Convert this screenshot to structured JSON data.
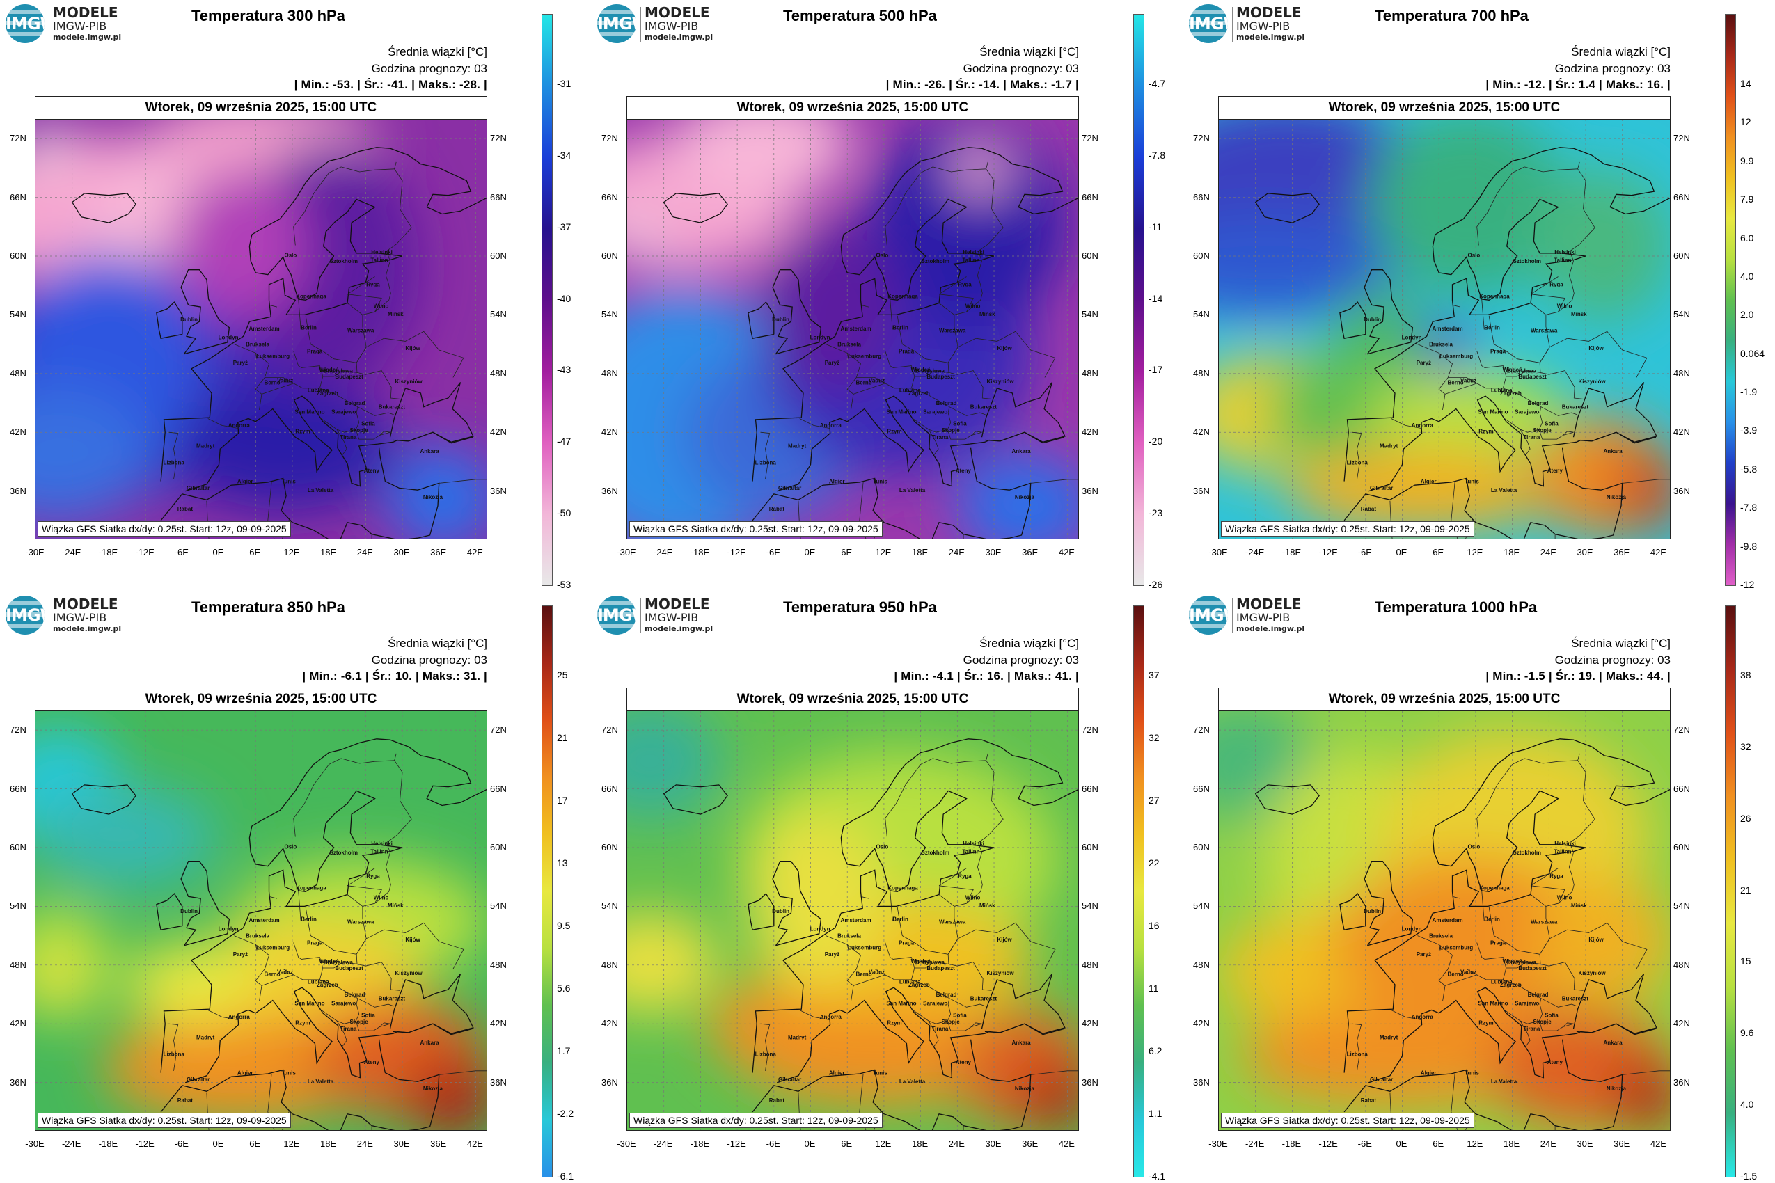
{
  "panels": [
    {
      "title": "Temperatura 300 hPa",
      "avg_label": "Średnia wiązki [°C]",
      "hour_label": "Godzina prognozy: 03",
      "stats_text": "| Min.:     -53. | Śr.:     -41. | Maks.:     -28. |",
      "date_text": "Wtorek, 09 września 2025, 15:00 UTC",
      "footer_text": "Wiązka GFS Siatka dx/dy: 0.25st. Start: 12z, 09-09-2025",
      "colorbar": {
        "ticks": [
          "-31",
          "-34",
          "-37",
          "-40",
          "-43",
          "-47",
          "-50",
          "-53"
        ],
        "colors": [
          "#25e6e6",
          "#1e8ee0",
          "#1a3ed8",
          "#26128f",
          "#5e0f8c",
          "#a21e9f",
          "#e060c0",
          "#f2b6d8",
          "#e8e8e8"
        ]
      },
      "field": {
        "bg": "#8a2fa5",
        "blobs": [
          [
            "#f5a6d0",
            0.15,
            0.22,
            0.32,
            0.18
          ],
          [
            "#f8b7d8",
            0.3,
            0.3,
            0.18,
            0.22
          ],
          [
            "#f3a2cc",
            0.5,
            0.05,
            0.25,
            0.1
          ],
          [
            "#e8e8e8",
            0.02,
            0.06,
            0.04,
            0.05
          ],
          [
            "#3f2ab8",
            0.2,
            0.62,
            0.35,
            0.28
          ],
          [
            "#2f56e0",
            0.15,
            0.6,
            0.22,
            0.28
          ],
          [
            "#3870e0",
            0.05,
            0.8,
            0.2,
            0.16
          ],
          [
            "#5b1aa0",
            0.65,
            0.35,
            0.2,
            0.3
          ],
          [
            "#2a1ea8",
            0.55,
            0.78,
            0.25,
            0.15
          ],
          [
            "#2b6fe8",
            0.9,
            0.9,
            0.12,
            0.12
          ],
          [
            "#b040b8",
            0.45,
            0.3,
            0.15,
            0.18
          ]
        ]
      }
    },
    {
      "title": "Temperatura 500 hPa",
      "avg_label": "Średnia wiązki [°C]",
      "hour_label": "Godzina prognozy: 03",
      "stats_text": "| Min.:     -26. | Śr.:     -14. | Maks.:     -1.7 |",
      "date_text": "Wtorek, 09 września 2025, 15:00 UTC",
      "footer_text": "Wiązka GFS Siatka dx/dy: 0.25st. Start: 12z, 09-09-2025",
      "colorbar": {
        "ticks": [
          "-4.7",
          "-7.8",
          "-11",
          "-14",
          "-17",
          "-20",
          "-23",
          "-26"
        ],
        "colors": [
          "#25e6e6",
          "#1e8ee0",
          "#1a3ed8",
          "#26128f",
          "#5e0f8c",
          "#a21e9f",
          "#e060c0",
          "#f2b6d8",
          "#e8e8e8"
        ]
      },
      "field": {
        "bg": "#9a38ac",
        "blobs": [
          [
            "#f5a6d0",
            0.12,
            0.2,
            0.26,
            0.16
          ],
          [
            "#f8b7d8",
            0.3,
            0.06,
            0.2,
            0.12
          ],
          [
            "#e8c8e0",
            0.02,
            0.28,
            0.05,
            0.05
          ],
          [
            "#2f8ee8",
            0.12,
            0.72,
            0.28,
            0.32
          ],
          [
            "#3a6ad8",
            0.32,
            0.75,
            0.2,
            0.2
          ],
          [
            "#3a2ab8",
            0.6,
            0.55,
            0.3,
            0.3
          ],
          [
            "#2a1ea8",
            0.75,
            0.25,
            0.22,
            0.25
          ],
          [
            "#5b1aa0",
            0.45,
            0.45,
            0.15,
            0.2
          ],
          [
            "#f0a8d4",
            0.78,
            0.12,
            0.06,
            0.06
          ],
          [
            "#2b6fe8",
            0.88,
            0.92,
            0.15,
            0.12
          ]
        ]
      }
    },
    {
      "title": "Temperatura 700 hPa",
      "avg_label": "Średnia wiązki [°C]",
      "hour_label": "Godzina prognozy: 03",
      "stats_text": "| Min.:     -12. | Śr.:     1.4 | Maks.:     16. |",
      "date_text": "Wtorek, 09 września 2025, 15:00 UTC",
      "footer_text": "Wiązka GFS Siatka dx/dy: 0.25st. Start: 12z, 09-09-2025",
      "colorbar": {
        "ticks": [
          "14",
          "12",
          "9.9",
          "7.9",
          "6.0",
          "4.0",
          "2.0",
          "0.064",
          "-1.9",
          "-3.9",
          "-5.8",
          "-7.8",
          "-9.8",
          "-12"
        ],
        "colors": [
          "#5a1010",
          "#a82818",
          "#e05018",
          "#f09020",
          "#f0c020",
          "#e8e840",
          "#b8e040",
          "#60c050",
          "#38b080",
          "#28c8d8",
          "#2890e8",
          "#2040c8",
          "#3a148f",
          "#a22ea8",
          "#e060c8"
        ]
      },
      "field": {
        "bg": "#2fc3d8",
        "blobs": [
          [
            "#3a40c0",
            0.15,
            0.15,
            0.32,
            0.2
          ],
          [
            "#2e58d0",
            0.1,
            0.35,
            0.3,
            0.12
          ],
          [
            "#4060c8",
            0.45,
            0.55,
            0.12,
            0.08
          ],
          [
            "#38b080",
            0.55,
            0.2,
            0.22,
            0.22
          ],
          [
            "#48b868",
            0.35,
            0.55,
            0.1,
            0.15
          ],
          [
            "#e8d030",
            0.12,
            0.7,
            0.2,
            0.14
          ],
          [
            "#60c050",
            0.3,
            0.7,
            0.2,
            0.14
          ],
          [
            "#b8e040",
            0.55,
            0.7,
            0.22,
            0.1
          ],
          [
            "#f0b020",
            0.45,
            0.88,
            0.3,
            0.1
          ],
          [
            "#f08a20",
            0.85,
            0.85,
            0.15,
            0.14
          ],
          [
            "#d05020",
            0.95,
            0.88,
            0.08,
            0.1
          ],
          [
            "#48b880",
            0.85,
            0.3,
            0.15,
            0.18
          ]
        ]
      }
    },
    {
      "title": "Temperatura 850 hPa",
      "avg_label": "Średnia wiązki [°C]",
      "hour_label": "Godzina prognozy: 03",
      "stats_text": "| Min.:     -6.1 | Śr.:     10. | Maks.:     31. |",
      "date_text": "Wtorek, 09 września 2025, 15:00 UTC",
      "footer_text": "Wiązka GFS Siatka dx/dy: 0.25st. Start: 12z, 09-09-2025",
      "colorbar": {
        "ticks": [
          "25",
          "21",
          "17",
          "13",
          "9.5",
          "5.6",
          "1.7",
          "-2.2",
          "-6.1"
        ],
        "colors": [
          "#5a1010",
          "#a82818",
          "#e05018",
          "#f09020",
          "#f0c020",
          "#e8e840",
          "#b8e040",
          "#60c050",
          "#38b080",
          "#28c8d8",
          "#2890e8"
        ]
      },
      "field": {
        "bg": "#46b85a",
        "blobs": [
          [
            "#28c8d8",
            0.05,
            0.18,
            0.14,
            0.14
          ],
          [
            "#38b8b0",
            0.2,
            0.3,
            0.2,
            0.12
          ],
          [
            "#b8e040",
            0.05,
            0.6,
            0.12,
            0.14
          ],
          [
            "#e8e040",
            0.05,
            0.63,
            0.05,
            0.06
          ],
          [
            "#b8e040",
            0.72,
            0.5,
            0.28,
            0.15
          ],
          [
            "#f0d030",
            0.6,
            0.62,
            0.25,
            0.12
          ],
          [
            "#f09020",
            0.45,
            0.85,
            0.3,
            0.13
          ],
          [
            "#e06020",
            0.8,
            0.82,
            0.2,
            0.14
          ],
          [
            "#b02818",
            0.92,
            0.92,
            0.1,
            0.1
          ],
          [
            "#e8e840",
            0.35,
            0.65,
            0.15,
            0.1
          ]
        ]
      }
    },
    {
      "title": "Temperatura 950 hPa",
      "avg_label": "Średnia wiązki [°C]",
      "hour_label": "Godzina prognozy: 03",
      "stats_text": "| Min.:     -4.1 | Śr.:     16. | Maks.:     41. |",
      "date_text": "Wtorek, 09 września 2025, 15:00 UTC",
      "footer_text": "Wiązka GFS Siatka dx/dy: 0.25st. Start: 12z, 09-09-2025",
      "colorbar": {
        "ticks": [
          "37",
          "32",
          "27",
          "22",
          "16",
          "11",
          "6.2",
          "1.1",
          "-4.1"
        ],
        "colors": [
          "#5a1010",
          "#a82818",
          "#e05018",
          "#f09020",
          "#f0c020",
          "#e8e840",
          "#b8e040",
          "#60c050",
          "#38b080",
          "#28c8d8",
          "#28e8e8"
        ]
      },
      "field": {
        "bg": "#60c050",
        "blobs": [
          [
            "#38b098",
            0.05,
            0.12,
            0.16,
            0.14
          ],
          [
            "#b8e040",
            0.6,
            0.35,
            0.35,
            0.25
          ],
          [
            "#e8e040",
            0.05,
            0.6,
            0.15,
            0.12
          ],
          [
            "#f0c020",
            0.6,
            0.6,
            0.3,
            0.15
          ],
          [
            "#f09020",
            0.3,
            0.75,
            0.12,
            0.1
          ],
          [
            "#f09020",
            0.55,
            0.82,
            0.3,
            0.12
          ],
          [
            "#e06020",
            0.88,
            0.85,
            0.15,
            0.14
          ],
          [
            "#b02818",
            0.95,
            0.92,
            0.08,
            0.08
          ],
          [
            "#e8e040",
            0.42,
            0.45,
            0.15,
            0.2
          ]
        ]
      }
    },
    {
      "title": "Temperatura 1000 hPa",
      "avg_label": "Średnia wiązki [°C]",
      "hour_label": "Godzina prognozy: 03",
      "stats_text": "| Min.:     -1.5 | Śr.:     19. | Maks.:     44. |",
      "date_text": "Wtorek, 09 września 2025, 15:00 UTC",
      "footer_text": "Wiązka GFS Siatka dx/dy: 0.25st. Start: 12z, 09-09-2025",
      "colorbar": {
        "ticks": [
          "38",
          "32",
          "26",
          "21",
          "15",
          "9.6",
          "4.0",
          "-1.5"
        ],
        "colors": [
          "#5a1010",
          "#a82818",
          "#e05018",
          "#f09020",
          "#f0c020",
          "#e8e840",
          "#b8e040",
          "#60c050",
          "#38b080",
          "#28e8e8"
        ]
      },
      "field": {
        "bg": "#8ed048",
        "blobs": [
          [
            "#48b878",
            0.05,
            0.12,
            0.16,
            0.14
          ],
          [
            "#c8e040",
            0.3,
            0.35,
            0.2,
            0.25
          ],
          [
            "#e8d030",
            0.65,
            0.3,
            0.3,
            0.25
          ],
          [
            "#f0c020",
            0.25,
            0.62,
            0.25,
            0.14
          ],
          [
            "#f09020",
            0.55,
            0.55,
            0.3,
            0.2
          ],
          [
            "#f09020",
            0.4,
            0.82,
            0.35,
            0.12
          ],
          [
            "#e06020",
            0.8,
            0.85,
            0.2,
            0.14
          ],
          [
            "#b02818",
            0.95,
            0.92,
            0.08,
            0.08
          ],
          [
            "#f0b020",
            0.85,
            0.55,
            0.15,
            0.15
          ]
        ]
      }
    }
  ],
  "axes": {
    "y_labels": [
      "72N",
      "66N",
      "60N",
      "54N",
      "48N",
      "42N",
      "36N"
    ],
    "x_labels": [
      "-30E",
      "-24E",
      "-18E",
      "-12E",
      "-6E",
      "0E",
      "6E",
      "12E",
      "18E",
      "24E",
      "30E",
      "36E",
      "42E"
    ]
  },
  "logo": {
    "line1": "MODELE",
    "line2": "IMGW-PIB",
    "line3": "modele.imgw.pl",
    "mark": "IMGW"
  }
}
